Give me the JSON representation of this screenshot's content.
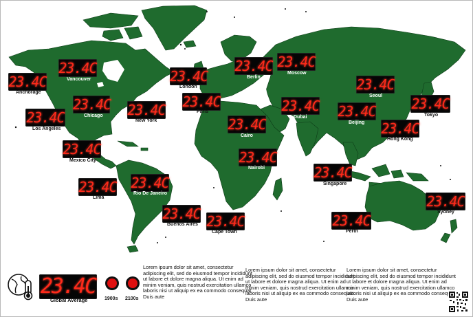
{
  "colors": {
    "land": "#1f6b2e",
    "led_text": "#ff2a1a",
    "led_bg": "#050505",
    "button": "#e01010"
  },
  "cities": [
    {
      "name": "Anchorage",
      "temp": "23.4C"
    },
    {
      "name": "Vancouver",
      "temp": "23.4C"
    },
    {
      "name": "Chicago",
      "temp": "23.4C"
    },
    {
      "name": "Los Angeles",
      "temp": "23.4C"
    },
    {
      "name": "New York",
      "temp": "23.4C"
    },
    {
      "name": "Mexico City",
      "temp": "23.4C"
    },
    {
      "name": "Lima",
      "temp": "23.4C"
    },
    {
      "name": "Rio De Janeiro",
      "temp": "23.4C"
    },
    {
      "name": "Buenos Aires",
      "temp": "23.4C"
    },
    {
      "name": "London",
      "temp": "23.4C"
    },
    {
      "name": "Paris",
      "temp": "23.4C"
    },
    {
      "name": "Berlin",
      "temp": "23.4C"
    },
    {
      "name": "Moscow",
      "temp": "23.4C"
    },
    {
      "name": "Cairo",
      "temp": "23.4C"
    },
    {
      "name": "Dubai",
      "temp": "23.4C"
    },
    {
      "name": "Nairobi",
      "temp": "23.4C"
    },
    {
      "name": "Cape Town",
      "temp": "23.4C"
    },
    {
      "name": "Seoul",
      "temp": "23.4C"
    },
    {
      "name": "Beijing",
      "temp": "23.4C"
    },
    {
      "name": "Tokyo",
      "temp": "23.4C"
    },
    {
      "name": "Hong Kong",
      "temp": "23.4C"
    },
    {
      "name": "Singapore",
      "temp": "23.4C"
    },
    {
      "name": "Perth",
      "temp": "23.4C"
    },
    {
      "name": "Sydney",
      "temp": "23.4C"
    }
  ],
  "global": {
    "label": "Global Average",
    "temp": "23.4C",
    "icon": "thermometer-globe-icon"
  },
  "buttons": [
    {
      "label": "1900s"
    },
    {
      "label": "2100s"
    }
  ],
  "paragraphs": [
    "Lorem ipsum dolor sit amet, consectetur adipiscing elit, sed do eiusmod tempor incididunt ut labore et dolore magna aliqua. Ut enim ad minim veniam, quis nostrud exercitation ullamco laboris nisi ut aliquip ex ea commodo consequat. Duis aute",
    "Lorem ipsum dolor sit amet, consectetur adipiscing elit, sed do eiusmod tempor incididunt ut labore et dolore magna aliqua. Ut enim ad minim veniam, quis nostrud exercitation ullamco laboris nisi ut aliquip ex ea commodo consequat. Duis aute",
    "Lorem ipsum dolor sit amet, consectetur adipiscing elit, sed do eiusmod tempor incididunt ut labore et dolore magna aliqua. Ut enim ad minim veniam, quis nostrud exercitation ullamco laboris nisi ut aliquip ex ea commodo consequat. Duis aute"
  ]
}
